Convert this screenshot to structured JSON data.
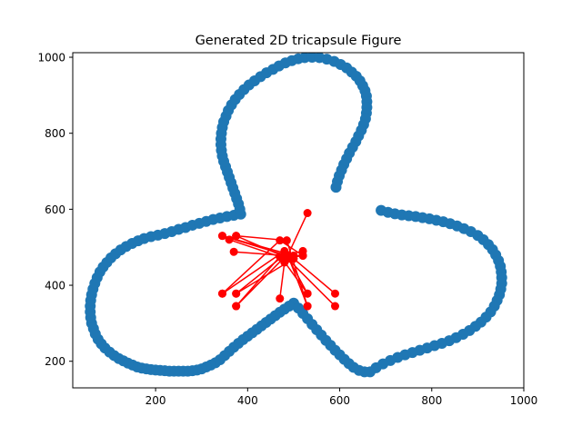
{
  "chart_data": {
    "type": "scatter",
    "title": "Generated 2D tricapsule Figure",
    "xlabel": "",
    "ylabel": "",
    "xlim": [
      20,
      1000
    ],
    "ylim": [
      130,
      1012
    ],
    "xticks": [
      200,
      400,
      600,
      800,
      1000
    ],
    "yticks": [
      200,
      400,
      600,
      800,
      1000
    ],
    "grid": false,
    "legend": "none",
    "colors": {
      "outline": "#1f77b4",
      "paths": "#ff0000"
    },
    "series": [
      {
        "style": "scatter-outline",
        "points": [
          [
            500,
            353
          ],
          [
            490,
            345
          ],
          [
            480,
            337
          ],
          [
            470,
            329
          ],
          [
            460,
            320
          ],
          [
            450,
            311
          ],
          [
            440,
            302
          ],
          [
            430,
            293
          ],
          [
            420,
            284
          ],
          [
            410,
            275
          ],
          [
            400,
            266
          ],
          [
            390,
            257
          ],
          [
            380,
            247
          ],
          [
            370,
            237
          ],
          [
            360,
            226
          ],
          [
            350,
            215
          ],
          [
            340,
            204
          ],
          [
            330,
            196
          ],
          [
            320,
            190
          ],
          [
            310,
            185
          ],
          [
            300,
            180
          ],
          [
            290,
            177
          ],
          [
            280,
            175
          ],
          [
            270,
            174
          ],
          [
            260,
            174
          ],
          [
            250,
            174
          ],
          [
            240,
            174
          ],
          [
            230,
            174
          ],
          [
            220,
            175
          ],
          [
            210,
            176
          ],
          [
            200,
            177
          ],
          [
            190,
            178
          ],
          [
            180,
            180
          ],
          [
            170,
            182
          ],
          [
            160,
            185
          ],
          [
            150,
            190
          ],
          [
            140,
            195
          ],
          [
            130,
            201
          ],
          [
            120,
            207
          ],
          [
            110,
            215
          ],
          [
            100,
            224
          ],
          [
            90,
            235
          ],
          [
            82,
            246
          ],
          [
            75,
            258
          ],
          [
            69,
            272
          ],
          [
            65,
            286
          ],
          [
            61,
            300
          ],
          [
            59,
            315
          ],
          [
            58,
            330
          ],
          [
            58,
            345
          ],
          [
            59,
            360
          ],
          [
            61,
            375
          ],
          [
            64,
            390
          ],
          [
            68,
            405
          ],
          [
            73,
            420
          ],
          [
            79,
            435
          ],
          [
            86,
            448
          ],
          [
            94,
            460
          ],
          [
            103,
            472
          ],
          [
            113,
            483
          ],
          [
            124,
            493
          ],
          [
            136,
            502
          ],
          [
            149,
            510
          ],
          [
            162,
            517
          ],
          [
            175,
            523
          ],
          [
            190,
            528
          ],
          [
            205,
            532
          ],
          [
            220,
            536
          ],
          [
            235,
            541
          ],
          [
            250,
            547
          ],
          [
            265,
            552
          ],
          [
            280,
            558
          ],
          [
            295,
            563
          ],
          [
            310,
            568
          ],
          [
            325,
            573
          ],
          [
            340,
            577
          ],
          [
            355,
            581
          ],
          [
            370,
            584
          ],
          [
            385,
            587
          ],
          [
            383,
            600
          ],
          [
            380,
            614
          ],
          [
            376,
            628
          ],
          [
            372,
            642
          ],
          [
            368,
            656
          ],
          [
            364,
            670
          ],
          [
            360,
            684
          ],
          [
            356,
            698
          ],
          [
            352,
            712
          ],
          [
            348,
            726
          ],
          [
            345,
            740
          ],
          [
            343,
            755
          ],
          [
            342,
            770
          ],
          [
            342,
            785
          ],
          [
            343,
            800
          ],
          [
            345,
            815
          ],
          [
            348,
            830
          ],
          [
            353,
            845
          ],
          [
            358,
            860
          ],
          [
            365,
            875
          ],
          [
            373,
            889
          ],
          [
            382,
            902
          ],
          [
            392,
            915
          ],
          [
            403,
            927
          ],
          [
            415,
            938
          ],
          [
            428,
            949
          ],
          [
            441,
            959
          ],
          [
            455,
            968
          ],
          [
            468,
            977
          ],
          [
            482,
            985
          ],
          [
            496,
            991
          ],
          [
            510,
            996
          ],
          [
            524,
            999
          ],
          [
            540,
            1000
          ],
          [
            556,
            999
          ],
          [
            572,
            995
          ],
          [
            588,
            989
          ],
          [
            602,
            981
          ],
          [
            615,
            972
          ],
          [
            626,
            961
          ],
          [
            636,
            950
          ],
          [
            644,
            938
          ],
          [
            650,
            925
          ],
          [
            655,
            912
          ],
          [
            658,
            898
          ],
          [
            659,
            883
          ],
          [
            659,
            868
          ],
          [
            658,
            853
          ],
          [
            656,
            838
          ],
          [
            652,
            823
          ],
          [
            647,
            808
          ],
          [
            641,
            793
          ],
          [
            635,
            778
          ],
          [
            628,
            763
          ],
          [
            621,
            748
          ],
          [
            615,
            733
          ],
          [
            609,
            718
          ],
          [
            604,
            703
          ],
          [
            599,
            688
          ],
          [
            595,
            673
          ],
          [
            592,
            658
          ],
          [
            690,
            597
          ],
          [
            705,
            592
          ],
          [
            720,
            588
          ],
          [
            735,
            585
          ],
          [
            750,
            583
          ],
          [
            765,
            581
          ],
          [
            780,
            578
          ],
          [
            795,
            575
          ],
          [
            810,
            571
          ],
          [
            825,
            567
          ],
          [
            840,
            562
          ],
          [
            855,
            556
          ],
          [
            870,
            549
          ],
          [
            885,
            541
          ],
          [
            900,
            531
          ],
          [
            912,
            520
          ],
          [
            923,
            507
          ],
          [
            932,
            494
          ],
          [
            939,
            480
          ],
          [
            945,
            465
          ],
          [
            949,
            450
          ],
          [
            951,
            435
          ],
          [
            952,
            420
          ],
          [
            952,
            405
          ],
          [
            950,
            390
          ],
          [
            947,
            375
          ],
          [
            942,
            360
          ],
          [
            936,
            345
          ],
          [
            928,
            330
          ],
          [
            918,
            316
          ],
          [
            907,
            303
          ],
          [
            895,
            292
          ],
          [
            882,
            281
          ],
          [
            868,
            271
          ],
          [
            853,
            262
          ],
          [
            838,
            254
          ],
          [
            822,
            247
          ],
          [
            806,
            241
          ],
          [
            790,
            235
          ],
          [
            774,
            229
          ],
          [
            758,
            223
          ],
          [
            742,
            217
          ],
          [
            726,
            210
          ],
          [
            710,
            202
          ],
          [
            694,
            193
          ],
          [
            679,
            183
          ],
          [
            666,
            172
          ],
          [
            654,
            172
          ],
          [
            642,
            176
          ],
          [
            630,
            184
          ],
          [
            620,
            194
          ],
          [
            610,
            205
          ],
          [
            600,
            217
          ],
          [
            590,
            229
          ],
          [
            580,
            242
          ],
          [
            570,
            255
          ],
          [
            560,
            269
          ],
          [
            550,
            283
          ],
          [
            540,
            297
          ],
          [
            530,
            312
          ],
          [
            520,
            326
          ],
          [
            510,
            340
          ]
        ]
      },
      {
        "style": "red-connected-paths",
        "segments": [
          [
            [
              345,
              530
            ],
            [
              480,
              480
            ],
            [
              375,
              378
            ]
          ],
          [
            [
              375,
              530
            ],
            [
              490,
              470
            ],
            [
              530,
              345
            ]
          ],
          [
            [
              360,
              520
            ],
            [
              470,
              475
            ],
            [
              375,
              345
            ]
          ],
          [
            [
              345,
              378
            ],
            [
              480,
              490
            ],
            [
              530,
              378
            ]
          ],
          [
            [
              375,
              345
            ],
            [
              485,
              480
            ],
            [
              520,
              490
            ]
          ],
          [
            [
              530,
              590
            ],
            [
              480,
              460
            ],
            [
              470,
              365
            ]
          ],
          [
            [
              375,
              378
            ],
            [
              500,
              470
            ],
            [
              590,
              378
            ]
          ],
          [
            [
              370,
              488
            ],
            [
              480,
              478
            ],
            [
              590,
              345
            ]
          ],
          [
            [
              345,
              378
            ],
            [
              470,
              518
            ],
            [
              520,
              478
            ]
          ],
          [
            [
              375,
              530
            ],
            [
              485,
              518
            ],
            [
              530,
              345
            ]
          ],
          [
            [
              520,
              478
            ],
            [
              475,
              470
            ],
            [
              530,
              378
            ]
          ],
          [
            [
              345,
              530
            ],
            [
              500,
              478
            ],
            [
              520,
              478
            ]
          ]
        ]
      }
    ]
  }
}
